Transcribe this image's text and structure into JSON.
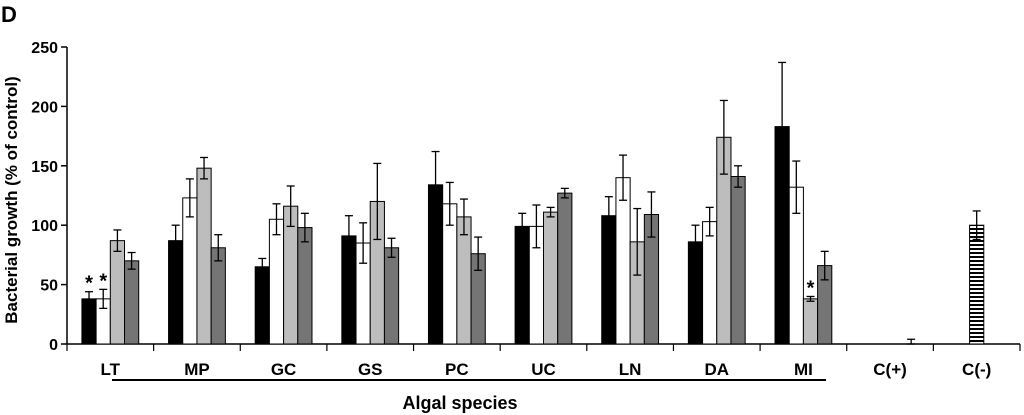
{
  "chart_data": {
    "type": "bar",
    "panel_label": "D",
    "title": "",
    "xlabel": "Algal species",
    "ylabel": "Bacterial growth (% of control)",
    "ylim": [
      0,
      250
    ],
    "yticks": [
      "0",
      "50",
      "100",
      "150",
      "200",
      "250"
    ],
    "grid": false,
    "categories": [
      "LT",
      "MP",
      "GC",
      "GS",
      "PC",
      "UC",
      "LN",
      "DA",
      "MI",
      "C(+)",
      "C(-)"
    ],
    "series": [
      {
        "name": "series-1",
        "color": "#000000",
        "pattern": "solid",
        "values": [
          38,
          87,
          65,
          91,
          134,
          99,
          108,
          86,
          183,
          null,
          null
        ],
        "errors": [
          6,
          13,
          7,
          17,
          28,
          11,
          16,
          14,
          54,
          null,
          null
        ],
        "significant": [
          true,
          false,
          false,
          false,
          false,
          false,
          false,
          false,
          false,
          false,
          false
        ]
      },
      {
        "name": "series-2",
        "color": "#ffffff",
        "pattern": "solid",
        "values": [
          38,
          123,
          105,
          85,
          118,
          99,
          140,
          103,
          132,
          0,
          null
        ],
        "errors": [
          8,
          16,
          13,
          17,
          18,
          18,
          19,
          12,
          22,
          4,
          null
        ],
        "significant": [
          true,
          false,
          false,
          false,
          false,
          false,
          false,
          false,
          false,
          false,
          false
        ]
      },
      {
        "name": "series-3",
        "color": "#bdbdbd",
        "pattern": "solid",
        "values": [
          87,
          148,
          116,
          120,
          107,
          111,
          86,
          174,
          38,
          null,
          100
        ],
        "errors": [
          9,
          9,
          17,
          32,
          15,
          4,
          28,
          31,
          2,
          null,
          12
        ],
        "significant": [
          false,
          false,
          false,
          false,
          false,
          false,
          false,
          false,
          true,
          false,
          false
        ]
      },
      {
        "name": "series-4",
        "color": "#757575",
        "pattern": "solid",
        "values": [
          70,
          81,
          98,
          81,
          76,
          127,
          109,
          141,
          66,
          null,
          null
        ],
        "errors": [
          7,
          11,
          12,
          8,
          14,
          4,
          19,
          9,
          12,
          null,
          null
        ],
        "significant": [
          false,
          false,
          false,
          false,
          false,
          false,
          false,
          false,
          false,
          false,
          false
        ]
      }
    ],
    "significance_marker": "*",
    "control_bar_pattern": "horizontal-stripes",
    "species_group": [
      "LT",
      "MP",
      "GC",
      "GS",
      "PC",
      "UC",
      "LN",
      "DA",
      "MI"
    ]
  }
}
